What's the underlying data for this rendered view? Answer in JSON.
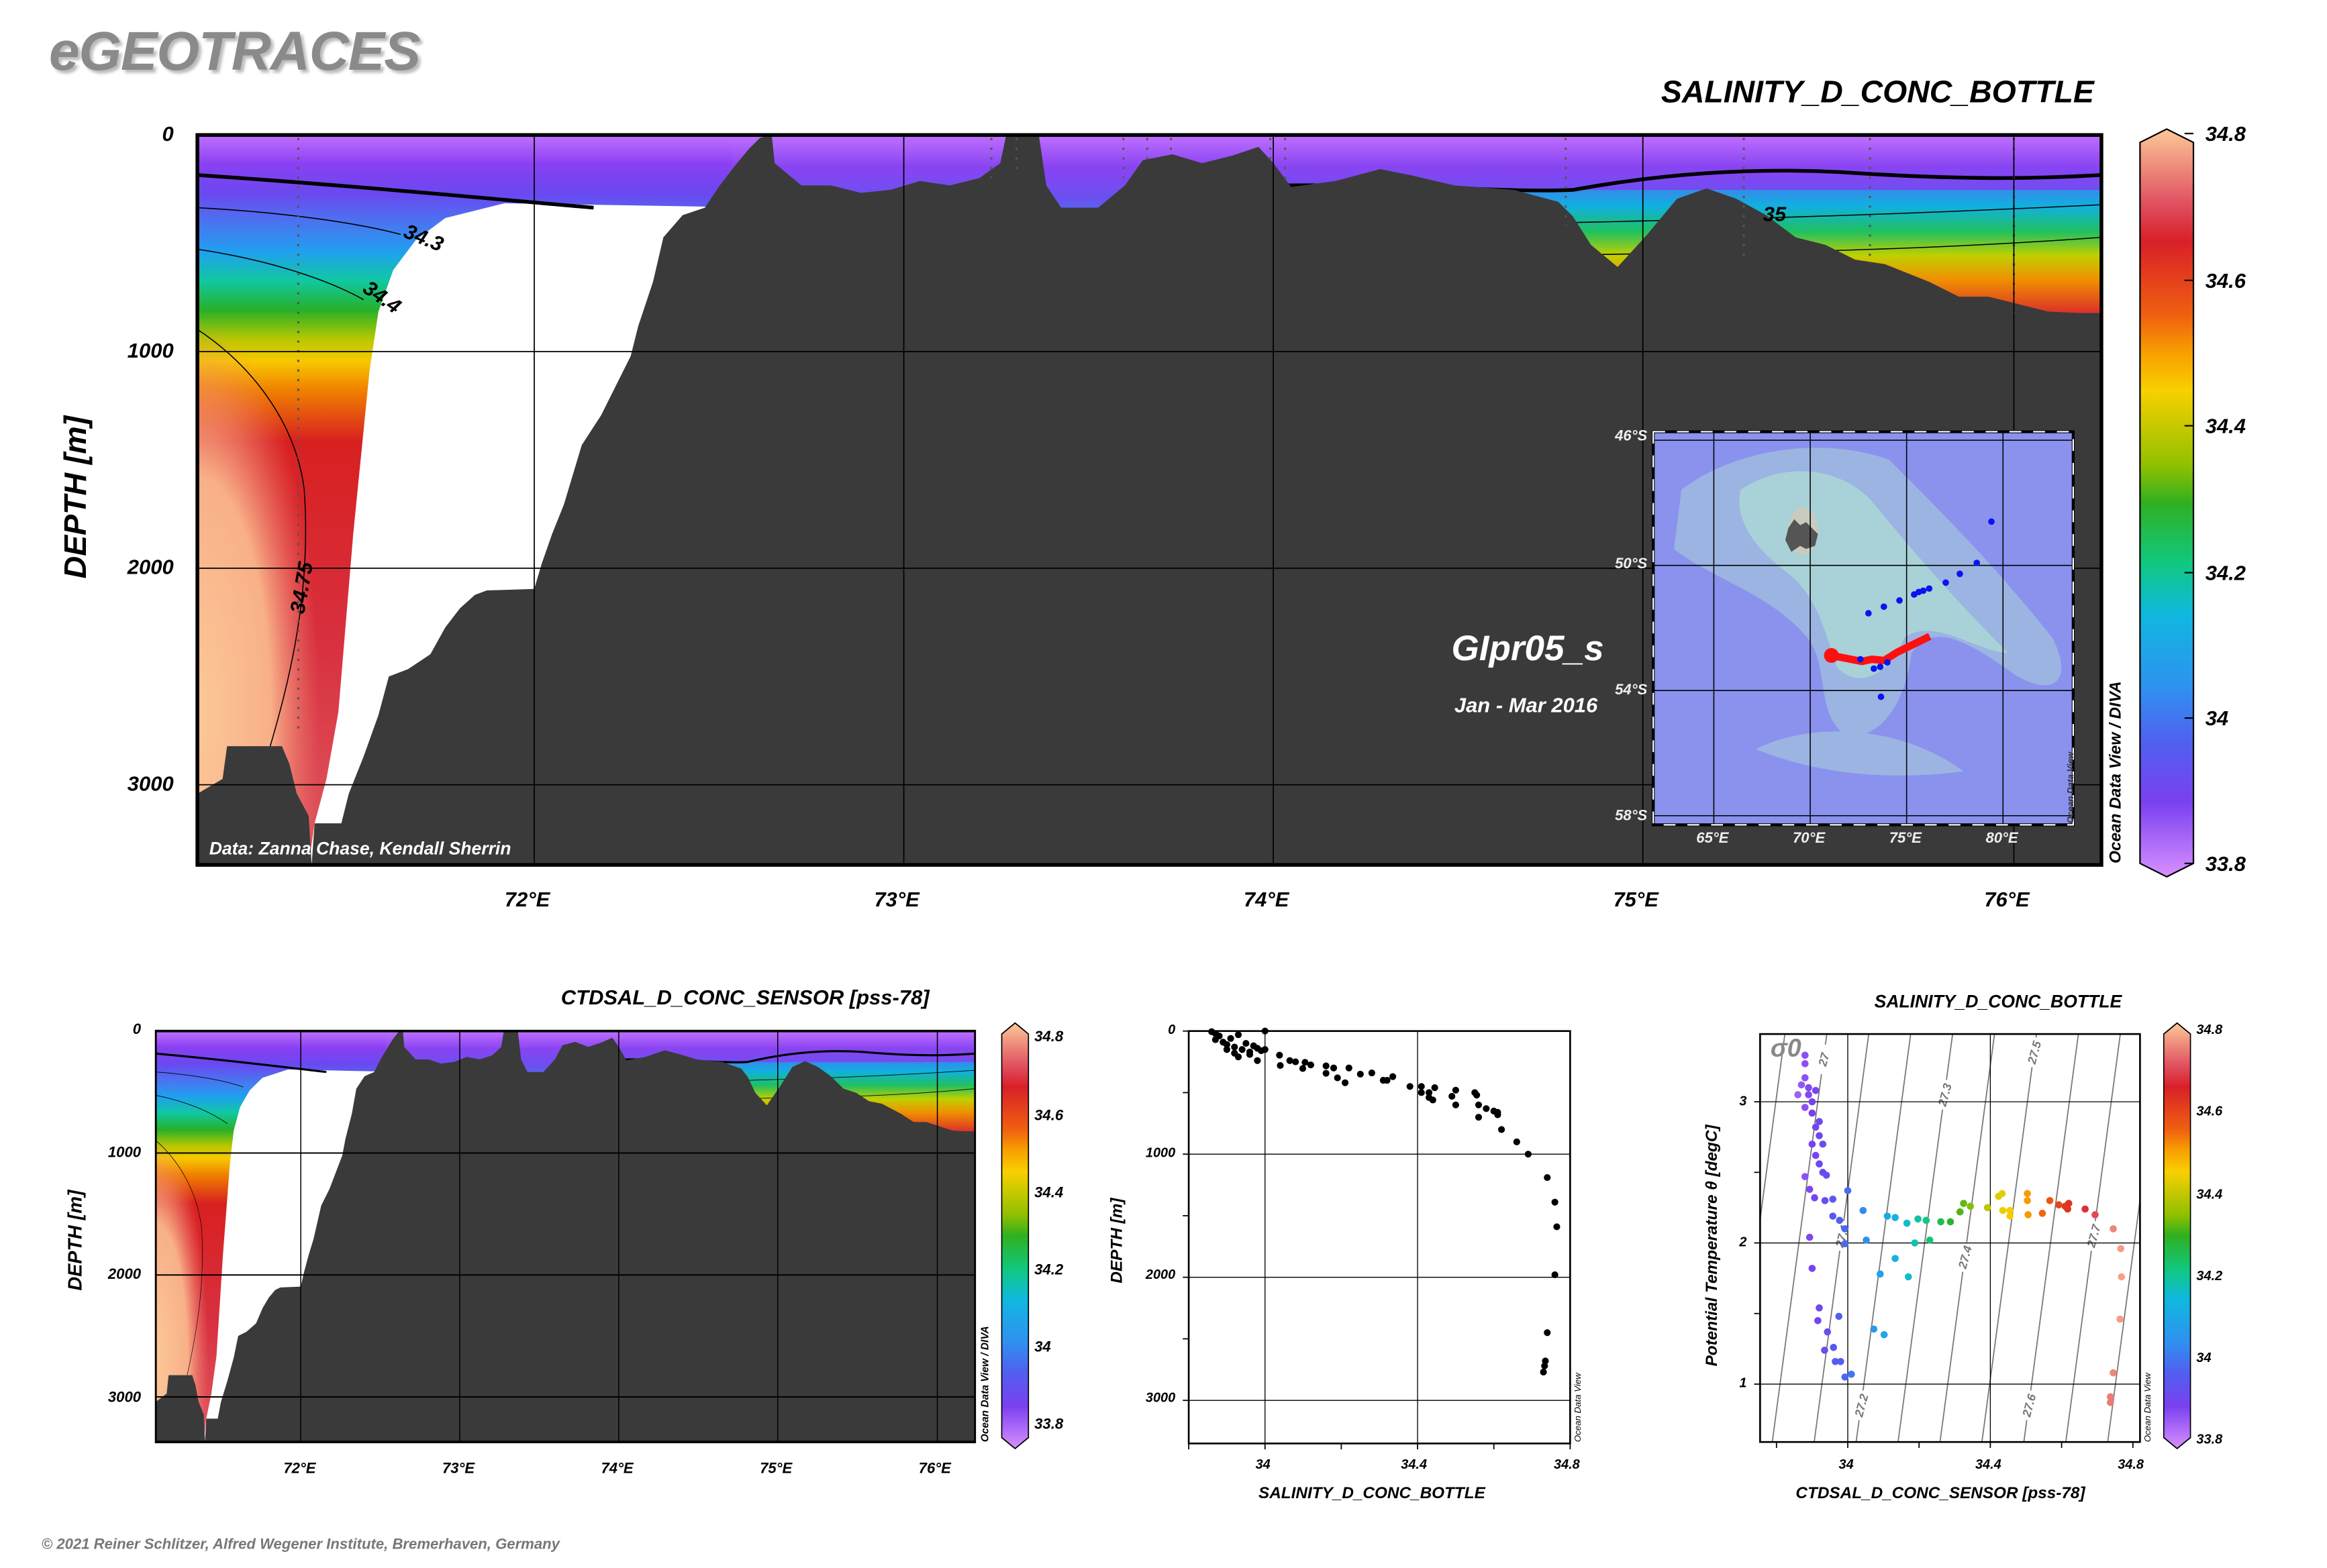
{
  "app": {
    "logo": "eGEOTRACES",
    "copyright": "© 2021 Reiner Schlitzer, Alfred Wegener Institute, Bremerhaven, Germany"
  },
  "colors": {
    "bathymetry": "#3a3a3a",
    "no_data": "#ffffff",
    "track": "#ff1010",
    "stations": "#0a14f0",
    "map_ocean": "#8a92ee",
    "map_plateau": "#a9d2d8"
  },
  "colormap": {
    "min": 33.8,
    "max": 34.8,
    "stops": [
      [
        34.8,
        "#fcc898"
      ],
      [
        34.7,
        "#e05060"
      ],
      [
        34.65,
        "#d82028"
      ],
      [
        34.55,
        "#f06010"
      ],
      [
        34.5,
        "#f8a000"
      ],
      [
        34.45,
        "#f8d000"
      ],
      [
        34.35,
        "#90c000"
      ],
      [
        34.3,
        "#30b020"
      ],
      [
        34.22,
        "#10c880"
      ],
      [
        34.15,
        "#10b8e0"
      ],
      [
        34.05,
        "#3090f0"
      ],
      [
        33.98,
        "#5060f0"
      ],
      [
        33.9,
        "#7a40f0"
      ],
      [
        33.8,
        "#d890ff"
      ]
    ]
  },
  "main_section": {
    "title": "SALINITY_D_CONC_BOTTLE",
    "ylabel": "DEPTH [m]",
    "yticks": [
      "0",
      "1000",
      "2000",
      "3000"
    ],
    "xticks": [
      "72°E",
      "73°E",
      "74°E",
      "75°E",
      "76°E"
    ],
    "cruise": "GIpr05_s",
    "period": "Jan - Mar 2016",
    "credit": "Data: Zanna Chase, Kendall Sherrin",
    "contour_labels": [
      "34.3",
      "34.4",
      "34.75",
      "35"
    ],
    "colorbar": {
      "ticks": [
        "34.8",
        "34.6",
        "34.4",
        "34.2",
        "34",
        "33.8"
      ],
      "label": "Ocean Data View / DIVA"
    },
    "map": {
      "lat_labels": [
        "46°S",
        "50°S",
        "54°S",
        "58°S"
      ],
      "lon_labels": [
        "65°E",
        "70°E",
        "75°E",
        "80°E"
      ],
      "lat_grid": [
        46,
        50,
        54,
        58
      ],
      "lon_grid": [
        65,
        70,
        75,
        80
      ],
      "lon_range": [
        61.78,
        83.72
      ],
      "lat_range": [
        45.68,
        58.34
      ],
      "watermark": "Ocean Data View",
      "stations": [
        [
          79.4,
          48.6
        ],
        [
          78.64,
          49.92
        ],
        [
          77.76,
          50.27
        ],
        [
          77.03,
          50.55
        ],
        [
          76.17,
          50.74
        ],
        [
          75.86,
          50.81
        ],
        [
          75.63,
          50.85
        ],
        [
          75.39,
          50.93
        ],
        [
          74.63,
          51.12
        ],
        [
          73.82,
          51.32
        ],
        [
          73.02,
          51.53
        ],
        [
          73.3,
          53.3
        ],
        [
          73.63,
          53.24
        ],
        [
          74.0,
          53.1
        ],
        [
          72.6,
          53.0
        ],
        [
          73.67,
          54.2
        ]
      ],
      "track": [
        [
          71.1,
          52.88
        ],
        [
          72.68,
          53.07
        ],
        [
          73.2,
          53.0
        ],
        [
          73.83,
          53.04
        ],
        [
          74.53,
          52.77
        ],
        [
          76.2,
          52.27
        ]
      ]
    }
  },
  "ctd_section": {
    "title": "CTDSAL_D_CONC_SENSOR [pss-78]",
    "ylabel": "DEPTH [m]",
    "yticks": [
      "0",
      "1000",
      "2000",
      "3000"
    ],
    "xticks": [
      "72°E",
      "73°E",
      "74°E",
      "75°E",
      "76°E"
    ],
    "colorbar": {
      "ticks": [
        "34.8",
        "34.6",
        "34.4",
        "34.2",
        "34",
        "33.8"
      ],
      "label": "Ocean Data View / DIVA"
    }
  },
  "chart_data": [
    {
      "type": "scatter",
      "title": "",
      "xlabel": "SALINITY_D_CONC_BOTTLE",
      "ylabel": "DEPTH [m]",
      "xlim": [
        33.8,
        34.8
      ],
      "ylim": [
        3350,
        0
      ],
      "xticks": [
        "34",
        "34.4",
        "34.8"
      ],
      "yticks": [
        "0",
        "1000",
        "2000",
        "3000"
      ],
      "watermark": "Ocean Data View",
      "grid": true,
      "points": [
        [
          33.86,
          5
        ],
        [
          33.87,
          20
        ],
        [
          33.88,
          40
        ],
        [
          33.87,
          70
        ],
        [
          33.89,
          90
        ],
        [
          33.9,
          110
        ],
        [
          33.91,
          60
        ],
        [
          33.92,
          130
        ],
        [
          33.93,
          30
        ],
        [
          33.94,
          150
        ],
        [
          33.95,
          100
        ],
        [
          33.96,
          170
        ],
        [
          33.97,
          120
        ],
        [
          33.98,
          140
        ],
        [
          33.99,
          160
        ],
        [
          34.0,
          0
        ],
        [
          34.0,
          150
        ],
        [
          33.93,
          210
        ],
        [
          33.96,
          190
        ],
        [
          33.98,
          240
        ],
        [
          33.9,
          150
        ],
        [
          33.92,
          180
        ],
        [
          34.038,
          196
        ],
        [
          34.04,
          280
        ],
        [
          34.065,
          240
        ],
        [
          34.08,
          250
        ],
        [
          34.099,
          304
        ],
        [
          34.105,
          254
        ],
        [
          34.12,
          275
        ],
        [
          34.16,
          343
        ],
        [
          34.16,
          283
        ],
        [
          34.18,
          300
        ],
        [
          34.19,
          380
        ],
        [
          34.21,
          420
        ],
        [
          34.22,
          300
        ],
        [
          34.25,
          350
        ],
        [
          34.28,
          340
        ],
        [
          34.31,
          400
        ],
        [
          34.32,
          400
        ],
        [
          34.335,
          370
        ],
        [
          34.38,
          450
        ],
        [
          34.41,
          450
        ],
        [
          34.41,
          500
        ],
        [
          34.43,
          500
        ],
        [
          34.43,
          540
        ],
        [
          34.44,
          560
        ],
        [
          34.445,
          460
        ],
        [
          34.5,
          480
        ],
        [
          34.49,
          530
        ],
        [
          34.5,
          600
        ],
        [
          34.55,
          500
        ],
        [
          34.555,
          520
        ],
        [
          34.56,
          600
        ],
        [
          34.56,
          700
        ],
        [
          34.58,
          630
        ],
        [
          34.6,
          650
        ],
        [
          34.61,
          660
        ],
        [
          34.61,
          680
        ],
        [
          34.62,
          800
        ],
        [
          34.66,
          900
        ],
        [
          34.69,
          1000
        ],
        [
          34.74,
          1190
        ],
        [
          34.76,
          1390
        ],
        [
          34.765,
          1590
        ],
        [
          34.76,
          1980
        ],
        [
          34.74,
          2450
        ],
        [
          34.735,
          2680
        ],
        [
          34.733,
          2720
        ],
        [
          34.73,
          2770
        ]
      ]
    },
    {
      "type": "scatter",
      "title": "SALINITY_D_CONC_BOTTLE",
      "xlabel": "CTDSAL_D_CONC_SENSOR [pss-78]",
      "ylabel": "Potential Temperature θ [degC]",
      "xlim": [
        33.754,
        34.82
      ],
      "ylim": [
        0.59,
        3.48
      ],
      "xticks": [
        "34",
        "34.4",
        "34.8"
      ],
      "yticks": [
        "3",
        "2",
        "1"
      ],
      "isopycnal_symbol": "σ0",
      "isopycnals": [
        26.9,
        27.0,
        27.1,
        27.2,
        27.3,
        27.4,
        27.5,
        27.6,
        27.7,
        27.8
      ],
      "isopycnal_labels": [
        "27",
        "27.1",
        "27.2",
        "27.3",
        "27.4",
        "27.5",
        "27.6",
        "27.7"
      ],
      "colorbar": {
        "ticks": [
          "34.8",
          "34.6",
          "34.4",
          "34.2",
          "34",
          "33.8"
        ],
        "label": "Ocean Data View"
      },
      "grid": true,
      "points": [
        [
          33.88,
          3.33
        ],
        [
          33.88,
          3.27
        ],
        [
          33.87,
          3.12
        ],
        [
          33.89,
          3.05
        ],
        [
          33.9,
          3.0
        ],
        [
          33.88,
          3.17
        ],
        [
          33.86,
          3.05
        ],
        [
          33.9,
          2.92
        ],
        [
          33.91,
          2.82
        ],
        [
          33.92,
          2.76
        ],
        [
          33.9,
          2.7
        ],
        [
          33.91,
          2.62
        ],
        [
          33.92,
          2.56
        ],
        [
          33.93,
          2.5
        ],
        [
          33.94,
          2.48
        ],
        [
          33.92,
          2.86
        ],
        [
          33.93,
          2.7
        ],
        [
          33.89,
          3.1
        ],
        [
          33.88,
          2.96
        ],
        [
          33.91,
          3.08
        ],
        [
          33.88,
          2.47
        ],
        [
          33.893,
          2.38
        ],
        [
          33.907,
          2.32
        ],
        [
          33.936,
          2.3
        ],
        [
          33.958,
          2.31
        ],
        [
          33.958,
          2.19
        ],
        [
          33.977,
          2.16
        ],
        [
          33.992,
          2.1
        ],
        [
          33.992,
          1.995
        ],
        [
          34.0,
          2.37
        ],
        [
          33.893,
          2.04
        ],
        [
          33.9,
          1.82
        ],
        [
          33.92,
          1.54
        ],
        [
          33.916,
          1.45
        ],
        [
          33.943,
          1.37
        ],
        [
          33.935,
          1.24
        ],
        [
          33.96,
          1.26
        ],
        [
          33.965,
          1.16
        ],
        [
          33.98,
          1.16
        ],
        [
          33.992,
          1.05
        ],
        [
          34.01,
          1.07
        ],
        [
          33.975,
          1.48
        ],
        [
          34.043,
          2.23
        ],
        [
          34.052,
          2.02
        ],
        [
          34.091,
          1.78
        ],
        [
          34.073,
          1.39
        ],
        [
          34.102,
          1.35
        ],
        [
          34.111,
          2.19
        ],
        [
          34.133,
          2.18
        ],
        [
          34.133,
          1.89
        ],
        [
          34.166,
          2.14
        ],
        [
          34.188,
          2.0
        ],
        [
          34.17,
          1.76
        ],
        [
          34.197,
          2.17
        ],
        [
          34.22,
          2.16
        ],
        [
          34.23,
          2.02
        ],
        [
          34.261,
          2.15
        ],
        [
          34.288,
          2.15
        ],
        [
          34.315,
          2.22
        ],
        [
          34.325,
          2.28
        ],
        [
          34.344,
          2.26
        ],
        [
          34.392,
          2.25
        ],
        [
          34.423,
          2.33
        ],
        [
          34.433,
          2.35
        ],
        [
          34.435,
          2.23
        ],
        [
          34.455,
          2.23
        ],
        [
          34.455,
          2.19
        ],
        [
          34.504,
          2.35
        ],
        [
          34.504,
          2.3
        ],
        [
          34.506,
          2.2
        ],
        [
          34.546,
          2.21
        ],
        [
          34.567,
          2.3
        ],
        [
          34.592,
          2.27
        ],
        [
          34.61,
          2.26
        ],
        [
          34.62,
          2.28
        ],
        [
          34.617,
          2.24
        ],
        [
          34.666,
          2.24
        ],
        [
          34.694,
          2.2
        ],
        [
          34.745,
          2.1
        ],
        [
          34.766,
          1.96
        ],
        [
          34.768,
          1.76
        ],
        [
          34.764,
          1.46
        ],
        [
          34.745,
          1.08
        ],
        [
          34.737,
          0.91
        ],
        [
          34.737,
          0.87
        ]
      ]
    }
  ]
}
